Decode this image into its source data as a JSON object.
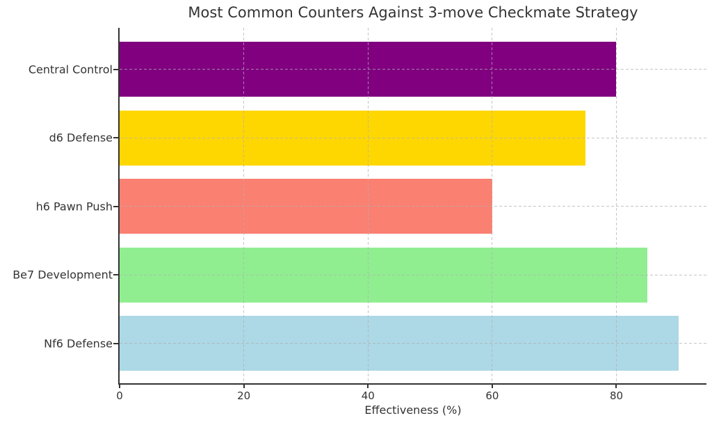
{
  "chart_data": {
    "type": "bar",
    "orientation": "horizontal",
    "title": "Most Common Counters Against 3-move Checkmate Strategy",
    "xlabel": "Effectiveness (%)",
    "ylabel": "",
    "categories": [
      "Central Control",
      "d6 Defense",
      "h6 Pawn Push",
      "Be7 Development",
      "Nf6 Defense"
    ],
    "categories_order": "top-to-bottom",
    "values": [
      80,
      75,
      60,
      85,
      90
    ],
    "bar_colors": [
      "#800080",
      "#FFD700",
      "#FA8072",
      "#90EE90",
      "#ADD8E6"
    ],
    "xlim": [
      0,
      94.5
    ],
    "xticks": [
      0,
      20,
      40,
      60,
      80
    ],
    "grid": {
      "vertical": true,
      "horizontal": true,
      "style": "dashed",
      "color": "#b0b0b0",
      "drawn_over_bars": true
    },
    "legend": "none",
    "background": "#ffffff",
    "text_color": "#333333",
    "spine_color": "#333333"
  }
}
